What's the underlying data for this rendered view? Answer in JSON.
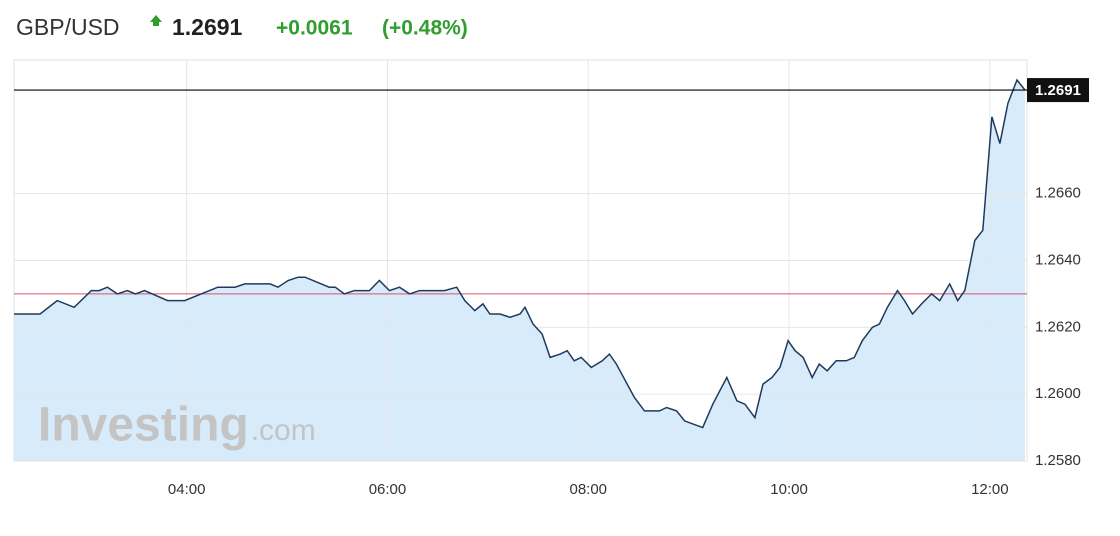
{
  "chart_data": {
    "type": "area_line",
    "symbol": "GBP/USD",
    "price": 1.2691,
    "change": "+0.0061",
    "change_percent": "(+0.48%)",
    "previous_close": 1.263,
    "watermark": "Investing",
    "watermark_suffix": ".com",
    "line_color": "#1e3a5c",
    "fill_color": "#d7ebfb",
    "grid": true,
    "x": [
      2.28,
      2.54,
      2.71,
      2.88,
      3.05,
      3.13,
      3.21,
      3.31,
      3.41,
      3.49,
      3.58,
      3.81,
      3.98,
      4.31,
      4.48,
      4.58,
      4.83,
      4.91,
      5.01,
      5.11,
      5.18,
      5.42,
      5.48,
      5.57,
      5.67,
      5.82,
      5.92,
      6.02,
      6.12,
      6.22,
      6.32,
      6.57,
      6.69,
      6.77,
      6.87,
      6.95,
      7.02,
      7.12,
      7.22,
      7.32,
      7.37,
      7.45,
      7.54,
      7.62,
      7.72,
      7.79,
      7.86,
      7.93,
      8.03,
      8.14,
      8.21,
      8.28,
      8.37,
      8.46,
      8.56,
      8.71,
      8.78,
      8.88,
      8.96,
      9.14,
      9.24,
      9.31,
      9.38,
      9.48,
      9.56,
      9.66,
      9.74,
      9.83,
      9.91,
      9.99,
      10.06,
      10.14,
      10.23,
      10.3,
      10.38,
      10.47,
      10.57,
      10.65,
      10.73,
      10.83,
      10.9,
      10.98,
      11.08,
      11.15,
      11.23,
      11.32,
      11.42,
      11.5,
      11.6,
      11.68,
      11.75,
      11.85,
      11.93,
      12.02,
      12.1,
      12.18,
      12.27,
      12.35
    ],
    "values": [
      1.2624,
      1.2624,
      1.2628,
      1.2626,
      1.2631,
      1.2631,
      1.2632,
      1.263,
      1.2631,
      1.263,
      1.2631,
      1.2628,
      1.2628,
      1.2632,
      1.2632,
      1.2633,
      1.2633,
      1.2632,
      1.2634,
      1.2635,
      1.2635,
      1.2632,
      1.2632,
      1.263,
      1.2631,
      1.2631,
      1.2634,
      1.2631,
      1.2632,
      1.263,
      1.2631,
      1.2631,
      1.2632,
      1.2628,
      1.2625,
      1.2627,
      1.2624,
      1.2624,
      1.2623,
      1.2624,
      1.2626,
      1.2621,
      1.2618,
      1.2611,
      1.2612,
      1.2613,
      1.261,
      1.2611,
      1.2608,
      1.261,
      1.2612,
      1.2609,
      1.2604,
      1.2599,
      1.2595,
      1.2595,
      1.2596,
      1.2595,
      1.2592,
      1.259,
      1.2597,
      1.2601,
      1.2605,
      1.2598,
      1.2597,
      1.2593,
      1.2603,
      1.2605,
      1.2608,
      1.2616,
      1.2613,
      1.2611,
      1.2605,
      1.2609,
      1.2607,
      1.261,
      1.261,
      1.2611,
      1.2616,
      1.262,
      1.2621,
      1.2626,
      1.2631,
      1.2628,
      1.2624,
      1.2627,
      1.263,
      1.2628,
      1.2633,
      1.2628,
      1.2631,
      1.2646,
      1.2649,
      1.2683,
      1.2675,
      1.2687,
      1.2694,
      1.2691
    ],
    "xlim": [
      2.28,
      12.37
    ],
    "xticks": [
      {
        "value": 4,
        "label": "04:00"
      },
      {
        "value": 6,
        "label": "06:00"
      },
      {
        "value": 8,
        "label": "08:00"
      },
      {
        "value": 10,
        "label": "10:00"
      },
      {
        "value": 12,
        "label": "12:00"
      }
    ],
    "ylim": [
      1.258,
      1.27
    ],
    "yticks": [
      {
        "value": 1.258,
        "label": "1.2580"
      },
      {
        "value": 1.26,
        "label": "1.2600"
      },
      {
        "value": 1.262,
        "label": "1.2620"
      },
      {
        "value": 1.264,
        "label": "1.2640"
      },
      {
        "value": 1.266,
        "label": "1.2660"
      }
    ]
  }
}
